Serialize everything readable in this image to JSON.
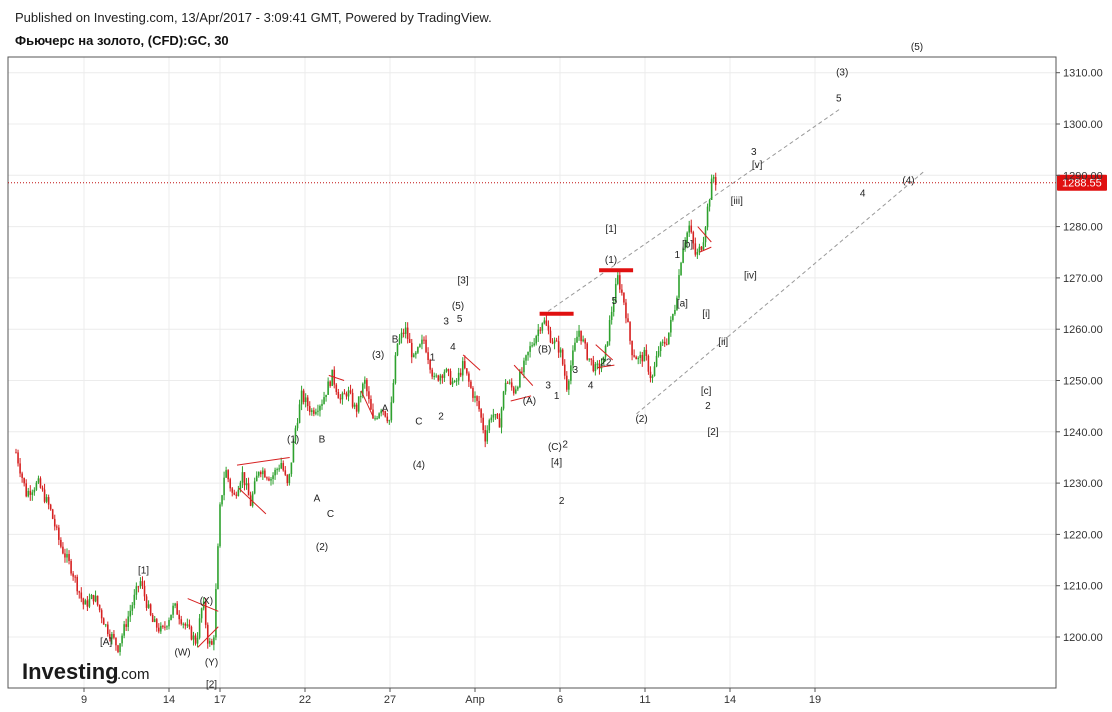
{
  "header": {
    "published": "Published on Investing.com, 13/Apr/2017 - 3:09:41 GMT, Powered by TradingView.",
    "title": "Фьючерс на золото, (CFD):GC, 30"
  },
  "brand": {
    "logo_main": "Investing",
    "logo_suffix": ".com"
  },
  "chart_data": {
    "type": "candlestick",
    "title": "Фьючерс на золото, (CFD):GC, 30",
    "x_ticks": [
      {
        "label": "9",
        "t": 9
      },
      {
        "label": "14",
        "t": 14
      },
      {
        "label": "17",
        "t": 17
      },
      {
        "label": "22",
        "t": 22
      },
      {
        "label": "27",
        "t": 27
      },
      {
        "label": "Апр",
        "t": 32
      },
      {
        "label": "6",
        "t": 37
      },
      {
        "label": "11",
        "t": 42
      },
      {
        "label": "14",
        "t": 47
      },
      {
        "label": "19",
        "t": 52
      }
    ],
    "x_range": [
      5,
      62
    ],
    "y_ticks": [
      1200,
      1210,
      1220,
      1230,
      1240,
      1250,
      1260,
      1270,
      1280,
      1290,
      1300,
      1310
    ],
    "y_tick_labels": [
      "1200.00",
      "1210.00",
      "1220.00",
      "1230.00",
      "1240.00",
      "1250.00",
      "1260.00",
      "1270.00",
      "1280.00",
      "1290.00",
      "1300.00",
      "1310.00"
    ],
    "ylim": [
      1190,
      1312
    ],
    "last_price": 1288.55,
    "last_price_label": "1288.55",
    "colors": {
      "up": "#2ea12e",
      "down": "#d62020",
      "price_line": "#c01010",
      "trend_channel": "#999999",
      "orange_label": "#f0a020"
    },
    "grid": true,
    "price_path": [
      [
        5.0,
        1236
      ],
      [
        5.6,
        1228
      ],
      [
        6.3,
        1230
      ],
      [
        7.0,
        1225
      ],
      [
        7.6,
        1218
      ],
      [
        8.3,
        1213
      ],
      [
        9.0,
        1206
      ],
      [
        9.6,
        1208
      ],
      [
        10.3,
        1202
      ],
      [
        11.0,
        1198
      ],
      [
        11.6,
        1204
      ],
      [
        12.3,
        1211
      ],
      [
        13.0,
        1203
      ],
      [
        13.6,
        1201
      ],
      [
        14.3,
        1206
      ],
      [
        15.0,
        1202
      ],
      [
        15.6,
        1199
      ],
      [
        16.0,
        1207
      ],
      [
        16.3,
        1199
      ],
      [
        16.6,
        1198
      ],
      [
        17.0,
        1225
      ],
      [
        17.3,
        1233
      ],
      [
        17.8,
        1227
      ],
      [
        18.3,
        1232
      ],
      [
        18.8,
        1226
      ],
      [
        19.3,
        1233
      ],
      [
        20.0,
        1231
      ],
      [
        20.6,
        1234
      ],
      [
        21.0,
        1229
      ],
      [
        21.4,
        1240
      ],
      [
        21.8,
        1247
      ],
      [
        22.4,
        1244
      ],
      [
        23.0,
        1246
      ],
      [
        23.6,
        1251
      ],
      [
        24.1,
        1246
      ],
      [
        24.5,
        1248
      ],
      [
        25.0,
        1244
      ],
      [
        25.5,
        1250
      ],
      [
        26.0,
        1242
      ],
      [
        26.5,
        1245
      ],
      [
        27.0,
        1242
      ],
      [
        27.4,
        1257
      ],
      [
        27.9,
        1260
      ],
      [
        28.4,
        1254
      ],
      [
        29.0,
        1258
      ],
      [
        29.6,
        1250
      ],
      [
        30.2,
        1252
      ],
      [
        30.8,
        1249
      ],
      [
        31.3,
        1253
      ],
      [
        31.8,
        1248
      ],
      [
        32.2,
        1245
      ],
      [
        32.6,
        1239
      ],
      [
        33.0,
        1244
      ],
      [
        33.4,
        1241
      ],
      [
        33.8,
        1250
      ],
      [
        34.3,
        1248
      ],
      [
        34.8,
        1252
      ],
      [
        35.2,
        1256
      ],
      [
        35.6,
        1259
      ],
      [
        36.0,
        1262
      ],
      [
        36.5,
        1258
      ],
      [
        37.0,
        1256
      ],
      [
        37.4,
        1249
      ],
      [
        37.7,
        1254
      ],
      [
        38.1,
        1260
      ],
      [
        38.6,
        1255
      ],
      [
        39.1,
        1252
      ],
      [
        39.6,
        1254
      ],
      [
        40.0,
        1263
      ],
      [
        40.4,
        1270
      ],
      [
        40.8,
        1265
      ],
      [
        41.2,
        1256
      ],
      [
        41.6,
        1254
      ],
      [
        42.0,
        1255
      ],
      [
        42.4,
        1250
      ],
      [
        42.8,
        1256
      ],
      [
        43.3,
        1258
      ],
      [
        43.8,
        1265
      ],
      [
        44.2,
        1276
      ],
      [
        44.6,
        1280
      ],
      [
        45.0,
        1274
      ],
      [
        45.4,
        1277
      ],
      [
        45.7,
        1284
      ],
      [
        46.0,
        1290
      ],
      [
        46.2,
        1288.5
      ]
    ],
    "red_bars": [
      {
        "t1": 35.8,
        "t2": 37.8,
        "y": 1263
      },
      {
        "t1": 39.3,
        "t2": 41.3,
        "y": 1271.5
      }
    ],
    "trend_lines": [
      {
        "t1": 36.3,
        "y1": 1263.5,
        "t2": 53.5,
        "y2": 1303
      },
      {
        "t1": 41.5,
        "y1": 1243.5,
        "t2": 58.5,
        "y2": 1291
      }
    ],
    "wave_markers": [
      {
        "t1": 18.0,
        "y1": 1233.5,
        "t2": 21.1,
        "y2": 1235
      },
      {
        "t1": 18.1,
        "y1": 1229,
        "t2": 19.7,
        "y2": 1224
      },
      {
        "t1": 15.1,
        "y1": 1207.5,
        "t2": 16.9,
        "y2": 1205
      },
      {
        "t1": 15.7,
        "y1": 1198,
        "t2": 16.9,
        "y2": 1202
      },
      {
        "t1": 23.4,
        "y1": 1251,
        "t2": 24.3,
        "y2": 1250
      },
      {
        "t1": 25.3,
        "y1": 1248,
        "t2": 26.0,
        "y2": 1243
      },
      {
        "t1": 31.3,
        "y1": 1255,
        "t2": 32.3,
        "y2": 1252
      },
      {
        "t1": 34.3,
        "y1": 1253,
        "t2": 35.4,
        "y2": 1249
      },
      {
        "t1": 34.1,
        "y1": 1246,
        "t2": 35.3,
        "y2": 1247
      },
      {
        "t1": 39.1,
        "y1": 1257,
        "t2": 40.1,
        "y2": 1254
      },
      {
        "t1": 39.2,
        "y1": 1252.5,
        "t2": 40.2,
        "y2": 1253
      },
      {
        "t1": 45.1,
        "y1": 1280,
        "t2": 45.9,
        "y2": 1277
      },
      {
        "t1": 45.2,
        "y1": 1275,
        "t2": 45.9,
        "y2": 1276
      }
    ],
    "wave_labels": [
      {
        "text": "[A]",
        "t": 10.3,
        "y": 1199.0
      },
      {
        "text": "[1]",
        "t": 12.5,
        "y": 1213.0
      },
      {
        "text": "(W)",
        "t": 14.8,
        "y": 1197.0
      },
      {
        "text": "(X)",
        "t": 16.2,
        "y": 1207.0
      },
      {
        "text": "(Y)",
        "t": 16.5,
        "y": 1195.0
      },
      {
        "text": "[2]",
        "t": 16.5,
        "y": 1190.7
      },
      {
        "text": "(1)",
        "t": 21.3,
        "y": 1238.5
      },
      {
        "text": "B",
        "t": 23.0,
        "y": 1238.5
      },
      {
        "text": "A",
        "t": 22.7,
        "y": 1227.0
      },
      {
        "text": "C",
        "t": 23.5,
        "y": 1224.0
      },
      {
        "text": "(2)",
        "t": 23.0,
        "y": 1217.5
      },
      {
        "text": "(3)",
        "t": 26.3,
        "y": 1255.0
      },
      {
        "text": "B",
        "t": 27.3,
        "y": 1258.0
      },
      {
        "text": "A",
        "t": 26.7,
        "y": 1244.5
      },
      {
        "text": "C",
        "t": 28.7,
        "y": 1242.0
      },
      {
        "text": "(4)",
        "t": 28.7,
        "y": 1233.5
      },
      {
        "text": "1",
        "t": 29.5,
        "y": 1254.5
      },
      {
        "text": "2",
        "t": 30.0,
        "y": 1243.0
      },
      {
        "text": "3",
        "t": 30.3,
        "y": 1261.5
      },
      {
        "text": "4",
        "t": 30.7,
        "y": 1256.5
      },
      {
        "text": "(5)",
        "t": 31.0,
        "y": 1264.5
      },
      {
        "text": "5",
        "t": 31.1,
        "y": 1262.0
      },
      {
        "text": "[3]",
        "t": 31.3,
        "y": 1269.5
      },
      {
        "text": "(B)",
        "t": 36.1,
        "y": 1256.0
      },
      {
        "text": "(A)",
        "t": 35.2,
        "y": 1246.0
      },
      {
        "text": "3",
        "t": 36.3,
        "y": 1249.0
      },
      {
        "text": "1",
        "t": 36.8,
        "y": 1247.0
      },
      {
        "text": "(C)",
        "t": 36.7,
        "y": 1237.0
      },
      {
        "text": "2",
        "t": 37.3,
        "y": 1237.5
      },
      {
        "text": "[4]",
        "t": 36.8,
        "y": 1234.0
      },
      {
        "text": "2",
        "t": 37.1,
        "y": 1226.5
      },
      {
        "text": "3",
        "t": 37.9,
        "y": 1252.0
      },
      {
        "text": "4",
        "t": 38.8,
        "y": 1249.0
      },
      {
        "text": "22",
        "t": 39.7,
        "y": 1253.5
      },
      {
        "text": "5",
        "t": 40.2,
        "y": 1265.5
      },
      {
        "text": "(1)",
        "t": 40.0,
        "y": 1273.5
      },
      {
        "text": "[1]",
        "t": 40.0,
        "y": 1279.5
      },
      {
        "text": "(2)",
        "t": 41.8,
        "y": 1242.5
      },
      {
        "text": "1",
        "t": 43.9,
        "y": 1274.5
      },
      {
        "text": "[b]",
        "t": 44.5,
        "y": 1276.5
      },
      {
        "text": "[a]",
        "t": 44.2,
        "y": 1265.0
      },
      {
        "text": "[i]",
        "t": 45.6,
        "y": 1263.0
      },
      {
        "text": "[c]",
        "t": 45.6,
        "y": 1248.0
      },
      {
        "text": "2",
        "t": 45.7,
        "y": 1245.0
      },
      {
        "text": "[2]",
        "t": 46.0,
        "y": 1240.0
      },
      {
        "text": "[ii]",
        "t": 46.6,
        "y": 1257.5
      },
      {
        "text": "[iii]",
        "t": 47.4,
        "y": 1285.0
      },
      {
        "text": "[iv]",
        "t": 48.2,
        "y": 1270.5
      },
      {
        "text": "3",
        "t": 48.4,
        "y": 1294.5
      },
      {
        "text": "[v]",
        "t": 48.6,
        "y": 1292.0
      },
      {
        "text": "5",
        "t": 53.4,
        "y": 1305.0
      },
      {
        "text": "(3)",
        "t": 53.6,
        "y": 1310.0
      },
      {
        "text": "(5)",
        "t": 58.0,
        "y": 1315.0
      },
      {
        "text": "4",
        "t": 54.8,
        "y": 1286.5
      },
      {
        "text": "(4)",
        "t": 57.5,
        "y": 1289.0
      }
    ],
    "orange_labels": [
      "[1]",
      "[2]"
    ]
  }
}
